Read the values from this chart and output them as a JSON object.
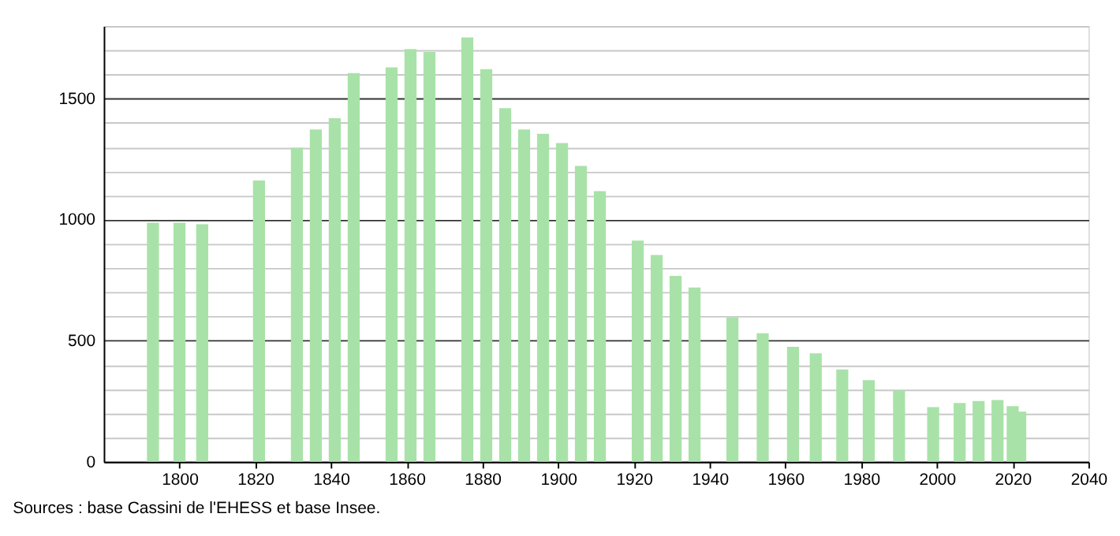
{
  "chart_data": {
    "type": "bar",
    "x": [
      1793,
      1800,
      1806,
      1821,
      1831,
      1836,
      1841,
      1846,
      1856,
      1861,
      1866,
      1876,
      1881,
      1886,
      1891,
      1896,
      1901,
      1906,
      1911,
      1921,
      1926,
      1931,
      1936,
      1946,
      1954,
      1962,
      1968,
      1975,
      1982,
      1990,
      1999,
      2006,
      2011,
      2016,
      2020,
      2022
    ],
    "values": [
      988,
      988,
      981,
      1162,
      1297,
      1373,
      1419,
      1606,
      1629,
      1705,
      1693,
      1753,
      1622,
      1461,
      1373,
      1355,
      1317,
      1222,
      1118,
      914,
      854,
      768,
      720,
      596,
      531,
      475,
      448,
      381,
      337,
      295,
      226,
      243,
      251,
      255,
      230,
      207
    ],
    "color": "#a8e2a8",
    "xlim": [
      1780,
      2040
    ],
    "xticks": [
      1800,
      1820,
      1840,
      1860,
      1880,
      1900,
      1920,
      1940,
      1960,
      1980,
      2000,
      2020,
      2040
    ],
    "ylim": [
      0,
      1800
    ],
    "yticks": [
      0,
      {
        "value": 100,
        "label": null
      },
      {
        "value": 200,
        "label": null
      },
      {
        "value": 300,
        "label": null
      },
      {
        "value": 400,
        "label": null
      },
      500,
      {
        "value": 600,
        "label": null
      },
      {
        "value": 700,
        "label": null
      },
      {
        "value": 800,
        "label": null
      },
      {
        "value": 900,
        "label": null
      },
      1000,
      {
        "value": 1100,
        "label": null
      },
      {
        "value": 1200,
        "label": null
      },
      {
        "value": 1300,
        "label": null
      },
      {
        "value": 1400,
        "label": null
      },
      1500,
      {
        "value": 1600,
        "label": null
      },
      {
        "value": 1700,
        "label": null
      },
      {
        "value": 1800,
        "label": null
      }
    ],
    "grid": "y",
    "annotations": [
      "Sources : base Cassini de l'EHESS et base Insee."
    ]
  }
}
